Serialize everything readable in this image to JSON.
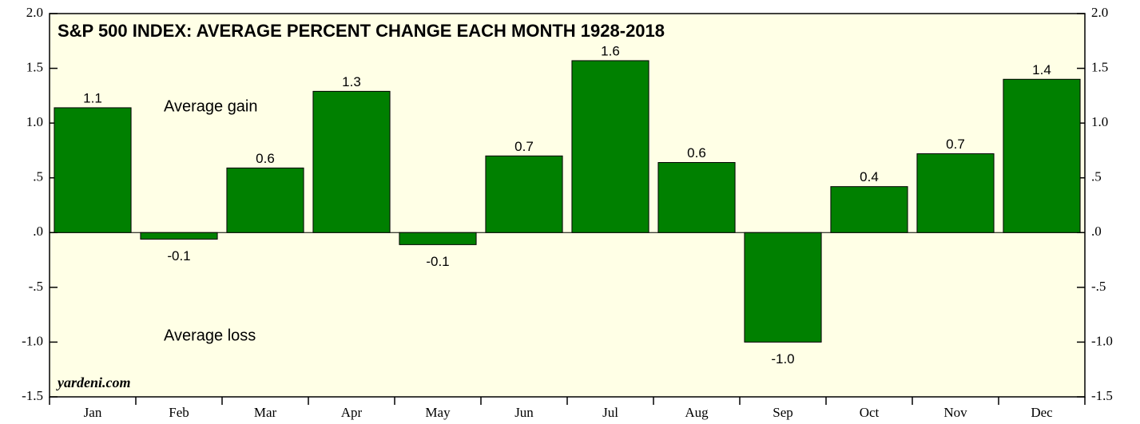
{
  "chart_data": {
    "type": "bar",
    "title": "S&P 500 INDEX: AVERAGE PERCENT CHANGE EACH MONTH 1928-2018",
    "annotations": [
      "Average gain",
      "Average loss"
    ],
    "source": "yardeni.com",
    "categories": [
      "Jan",
      "Feb",
      "Mar",
      "Apr",
      "May",
      "Jun",
      "Jul",
      "Aug",
      "Sep",
      "Oct",
      "Nov",
      "Dec"
    ],
    "values": [
      1.14,
      -0.06,
      0.59,
      1.29,
      -0.11,
      0.7,
      1.57,
      0.64,
      -1.0,
      0.42,
      0.72,
      1.4
    ],
    "value_labels": [
      "1.1",
      "-0.1",
      "0.6",
      "1.3",
      "-0.1",
      "0.7",
      "1.6",
      "0.6",
      "-1.0",
      "0.4",
      "0.7",
      "1.4"
    ],
    "color": "#008000",
    "ylim": [
      -1.5,
      2.0
    ],
    "yticks": [
      {
        "value": -1.5,
        "label": "-1.5"
      },
      {
        "value": -1.0,
        "label": "-1.0"
      },
      {
        "value": -0.5,
        "label": "-.5"
      },
      {
        "value": 0,
        "label": ".0"
      },
      {
        "value": 0.5,
        "label": ".5"
      },
      {
        "value": 1.0,
        "label": "1.0"
      },
      {
        "value": 1.5,
        "label": "1.5"
      },
      {
        "value": 2.0,
        "label": "2.0"
      }
    ],
    "y2lim": [
      -1.5,
      2.0
    ],
    "y2ticks": [
      {
        "value": -1.5,
        "label": "-1.5"
      },
      {
        "value": -1.0,
        "label": "-1.0"
      },
      {
        "value": -0.5,
        "label": "-.5"
      },
      {
        "value": 0,
        "label": ".0"
      },
      {
        "value": 0.5,
        "label": ".5"
      },
      {
        "value": 1.0,
        "label": "1.0"
      },
      {
        "value": 1.5,
        "label": "1.5"
      },
      {
        "value": 2.0,
        "label": "2.0"
      }
    ],
    "grid": false
  }
}
